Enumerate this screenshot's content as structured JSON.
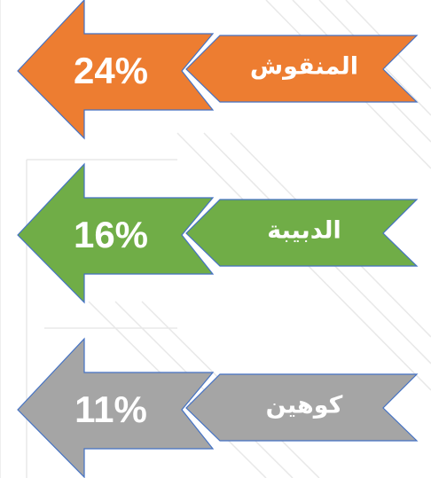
{
  "items": [
    {
      "label": "المنقوش",
      "value": "24%",
      "color": "#ed7d31"
    },
    {
      "label": "الدبيبة",
      "value": "16%",
      "color": "#70ad47"
    },
    {
      "label": "كوهين",
      "value": "11%",
      "color": "#a5a5a5"
    }
  ]
}
